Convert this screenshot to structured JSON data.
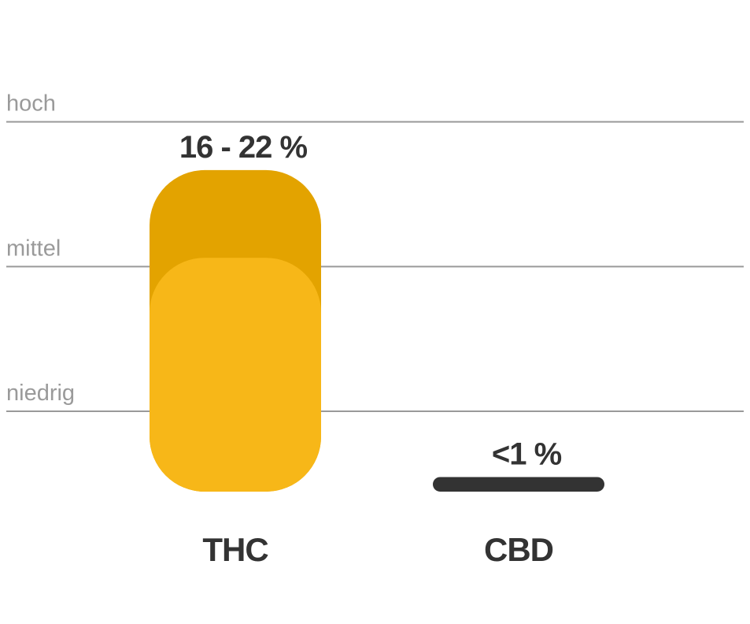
{
  "chart_data": {
    "type": "range-bar",
    "categories": [
      "THC",
      "CBD"
    ],
    "values": [
      22,
      1
    ],
    "lows": [
      16,
      null
    ],
    "value_labels": [
      "16 - 22 %",
      "<1 %"
    ],
    "colors": [
      "#e3a300",
      "#333333"
    ],
    "low_color": "#f7b718",
    "ylim": [
      0,
      30
    ],
    "yticks": [
      {
        "value": 5.5,
        "label": "niedrig"
      },
      {
        "value": 15.4,
        "label": "mittel"
      },
      {
        "value": 25.3,
        "label": "hoch"
      }
    ],
    "grid": true
  }
}
